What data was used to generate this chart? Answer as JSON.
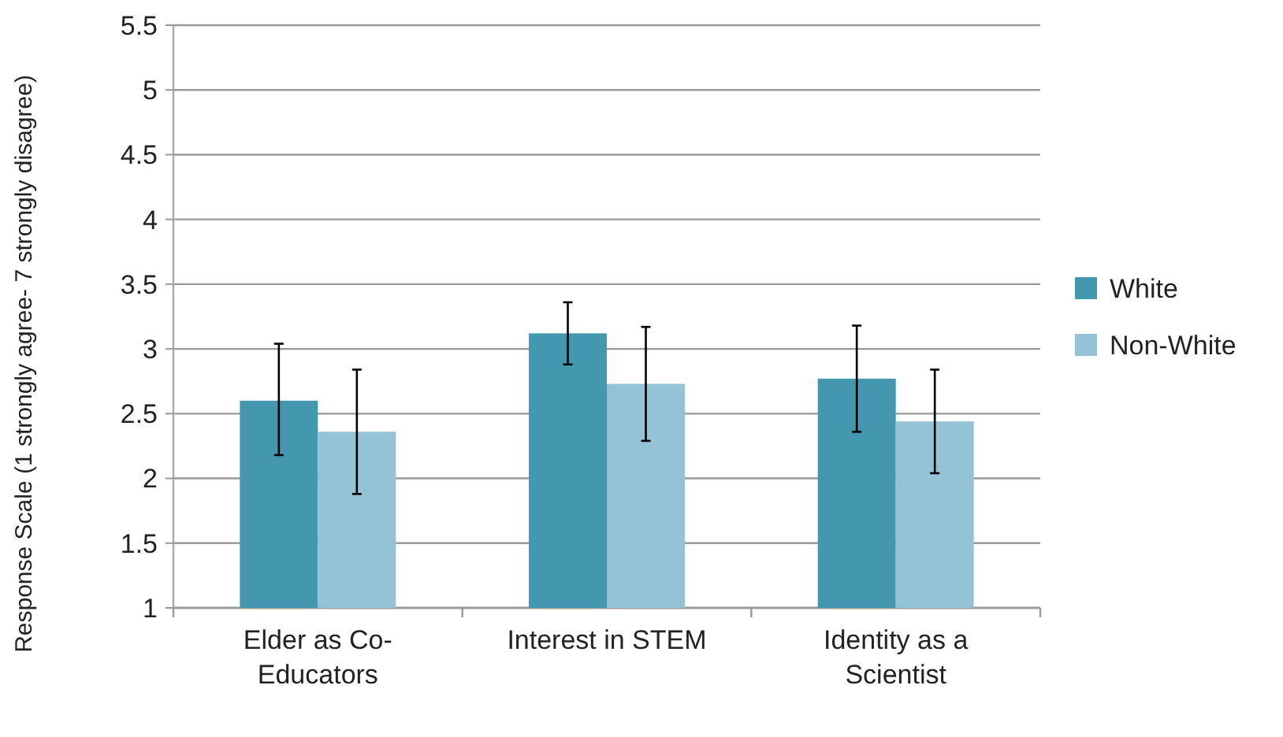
{
  "chart_data": {
    "type": "bar",
    "ylabel": "Response Scale (1 strongly agree- 7 strongly disagree)",
    "categories": [
      "Elder as Co-Educators",
      "Interest in STEM",
      "Identity as a Scientist"
    ],
    "series": [
      {
        "name": "White",
        "color": "#4398b0",
        "values": [
          2.6,
          3.12,
          2.77
        ],
        "errors": [
          [
            2.18,
            3.04
          ],
          [
            2.88,
            3.36
          ],
          [
            2.36,
            3.18
          ]
        ]
      },
      {
        "name": "Non-White",
        "color": "#93c3d5",
        "values": [
          2.36,
          2.73,
          2.44
        ],
        "errors": [
          [
            1.88,
            2.84
          ],
          [
            2.29,
            3.17
          ],
          [
            2.04,
            2.84
          ]
        ]
      }
    ],
    "ylim": [
      1,
      5.5
    ],
    "yticks": [
      1,
      1.5,
      2,
      2.5,
      3,
      3.5,
      4,
      4.5,
      5,
      5.5
    ],
    "grid": "y",
    "legend": "right"
  }
}
